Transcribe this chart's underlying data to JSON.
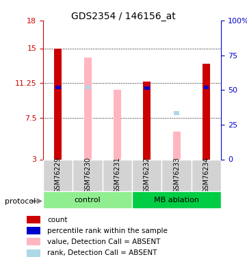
{
  "title": "GDS2354 / 146156_at",
  "samples": [
    "GSM76229",
    "GSM76230",
    "GSM76231",
    "GSM76232",
    "GSM76233",
    "GSM76234"
  ],
  "groups": [
    "control",
    "control",
    "control",
    "MB ablation",
    "MB ablation",
    "MB ablation"
  ],
  "ylim_left": [
    3,
    18
  ],
  "ylim_right": [
    0,
    100
  ],
  "yticks_left": [
    3,
    7.5,
    11.25,
    15,
    18
  ],
  "yticks_right": [
    0,
    25,
    50,
    75,
    100
  ],
  "ytick_labels_right": [
    "0",
    "25",
    "50",
    "75",
    "100%"
  ],
  "red_bars": [
    15.0,
    null,
    null,
    11.4,
    null,
    13.3
  ],
  "blue_bars": [
    10.8,
    null,
    null,
    10.7,
    null,
    10.8
  ],
  "pink_bars": [
    null,
    14.0,
    10.5,
    null,
    6.0,
    null
  ],
  "light_blue_bars": [
    null,
    10.8,
    null,
    null,
    8.0,
    null
  ],
  "bar_width": 0.4,
  "group_colors": {
    "control": "#90EE90",
    "MB ablation": "#00CC44"
  },
  "legend_items": [
    {
      "color": "#CC0000",
      "label": "count"
    },
    {
      "color": "#0000CC",
      "label": "percentile rank within the sample"
    },
    {
      "color": "#FFB6C1",
      "label": "value, Detection Call = ABSENT"
    },
    {
      "color": "#ADD8E6",
      "label": "rank, Detection Call = ABSENT"
    }
  ],
  "dotted_line_color": "#888888",
  "background_color": "#FFFFFF",
  "plot_bg": "#FFFFFF",
  "left_axis_color": "#CC0000",
  "right_axis_color": "#0000CC"
}
